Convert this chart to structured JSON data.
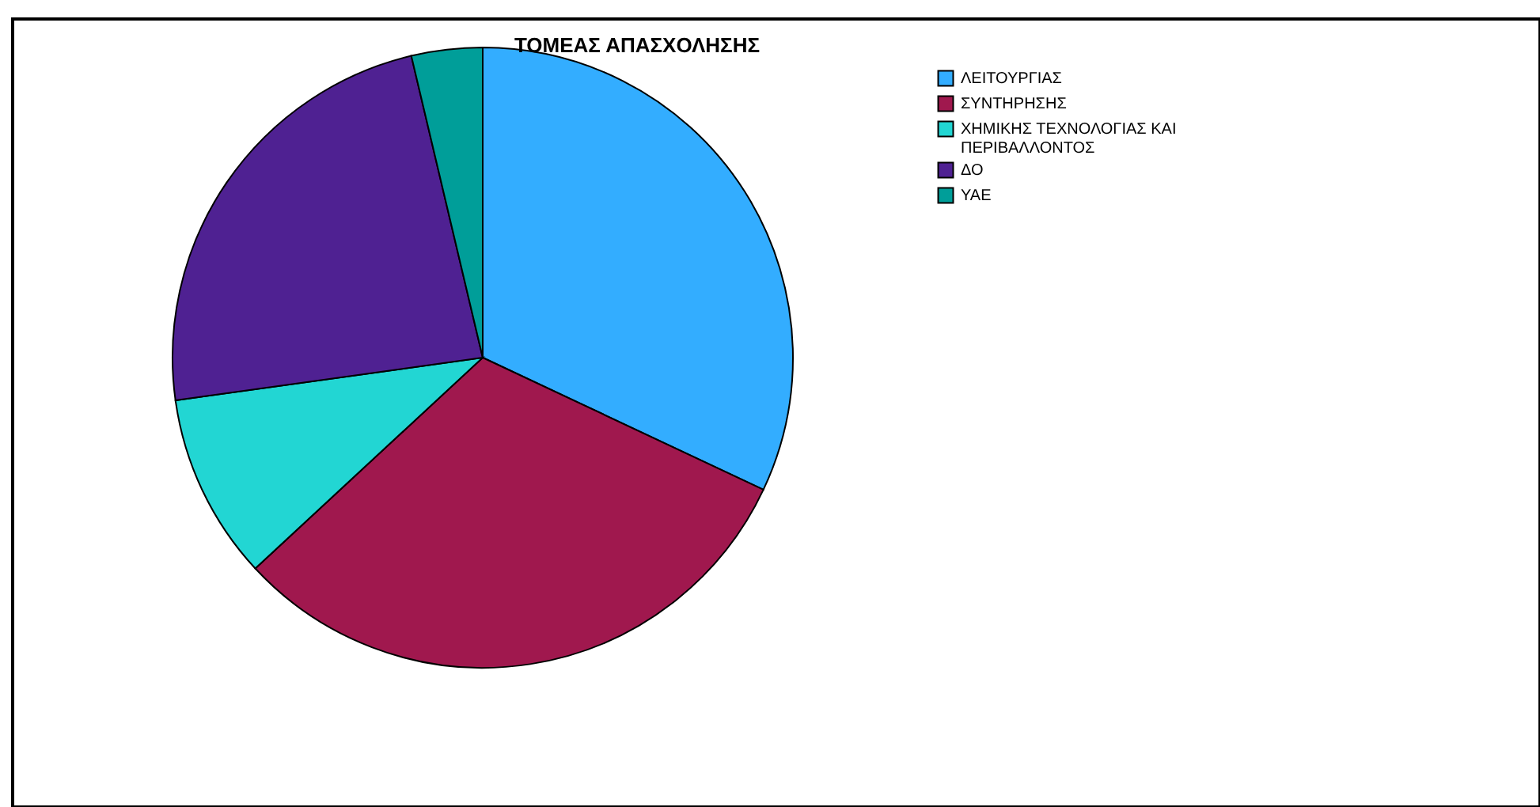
{
  "chart_data": {
    "type": "pie",
    "title": "ΤΟΜΕΑΣ ΑΠΑΣΧΟΛΗΣΗΣ",
    "categories": [
      "ΛΕΙΤΟΥΡΓΙΑΣ",
      "ΣΥΝΤΗΡΗΣΗΣ",
      "ΧΗΜΙΚΗΣ ΤΕΧΝΟΛΟΓΙΑΣ ΚΑΙ ΠΕΡΙΒΑΛΛΟΝΤΟΣ",
      "ΔΟ",
      "ΥΑΕ"
    ],
    "values": [
      32,
      31.1,
      9.7,
      23.5,
      3.7
    ],
    "colors": [
      "#33adff",
      "#a0184e",
      "#22d6d3",
      "#4f2192",
      "#009e99"
    ],
    "legend": "top right"
  }
}
